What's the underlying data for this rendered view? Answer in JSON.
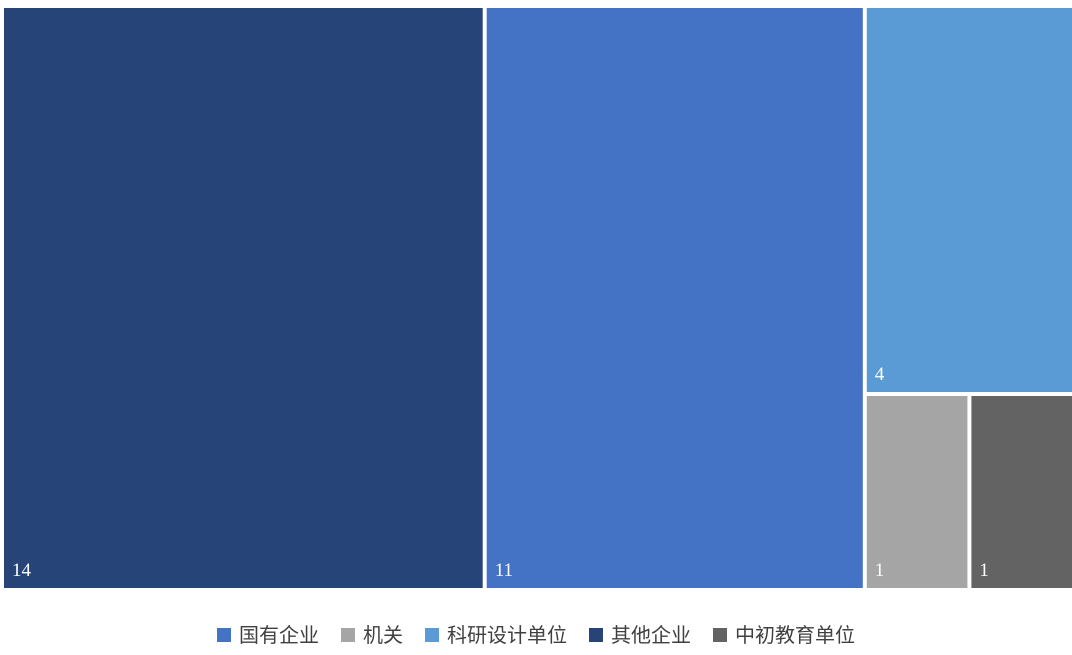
{
  "chart_data": {
    "type": "treemap",
    "title": "",
    "legend_position": "bottom",
    "series": [
      {
        "name": "国有企业",
        "value": 11,
        "color": "#4472C4"
      },
      {
        "name": "机关",
        "value": 1,
        "color": "#A5A5A5"
      },
      {
        "name": "科研设计单位",
        "value": 4,
        "color": "#5B9BD5"
      },
      {
        "name": "其他企业",
        "value": 14,
        "color": "#264478"
      },
      {
        "name": "中初教育单位",
        "value": 1,
        "color": "#636363"
      }
    ],
    "tiles": [
      {
        "series": "其他企业",
        "label": "14"
      },
      {
        "series": "国有企业",
        "label": "11"
      },
      {
        "series": "科研设计单位",
        "label": "4"
      },
      {
        "series": "机关",
        "label": "1"
      },
      {
        "series": "中初教育单位",
        "label": "1"
      }
    ]
  }
}
